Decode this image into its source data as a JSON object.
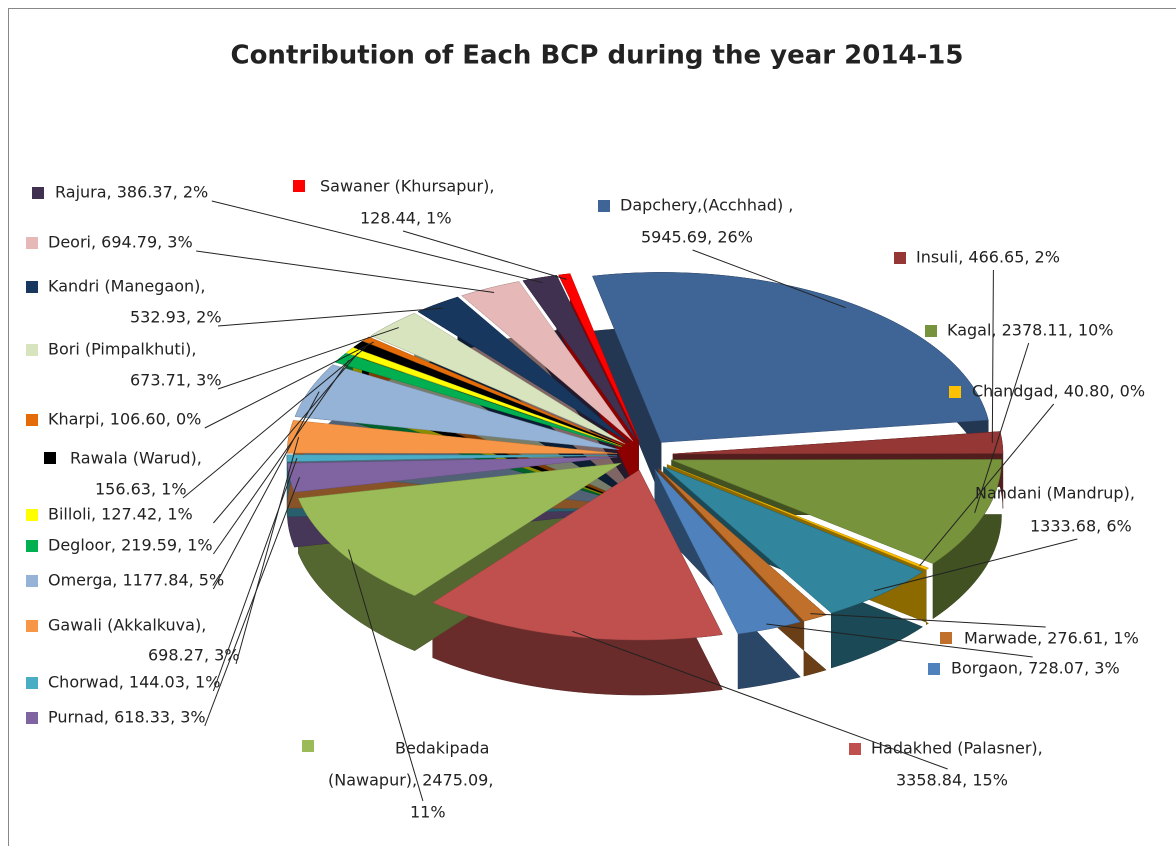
{
  "chart_data": {
    "type": "pie3d",
    "title": "Contribution of Each BCP during the year 2014-15",
    "values": [
      5945.69,
      466.65,
      2378.11,
      40.8,
      1333.68,
      276.61,
      728.07,
      3358.84,
      2475.09,
      618.33,
      144.03,
      698.27,
      1177.84,
      219.59,
      127.42,
      156.63,
      106.6,
      673.71,
      532.93,
      694.79,
      386.37,
      128.44
    ],
    "value_labels": [
      [
        "Dapchery,(Acchhad) ,",
        "5945.69, 26%"
      ],
      [
        "Insuli, 466.65, 2%"
      ],
      [
        "Kagal, 2378.11, 10%"
      ],
      [
        "Chandgad, 40.80, 0%"
      ],
      [
        "Nandani (Mandrup),",
        "1333.68, 6%"
      ],
      [
        "Marwade, 276.61, 1%"
      ],
      [
        "Borgaon, 728.07, 3%"
      ],
      [
        "Hadakhed (Palasner),",
        "3358.84, 15%"
      ],
      [
        "Bedakipada",
        "(Nawapur), 2475.09,",
        "11%"
      ],
      [
        "Purnad, 618.33, 3%"
      ],
      [
        "Chorwad, 144.03, 1%"
      ],
      [
        "Gawali (Akkalkuva),",
        "698.27, 3%"
      ],
      [
        "Omerga, 1177.84, 5%"
      ],
      [
        "Degloor, 219.59, 1%"
      ],
      [
        "Billoli, 127.42, 1%"
      ],
      [
        "Rawala (Warud),",
        "156.63, 1%"
      ],
      [
        "Kharpi, 106.60, 0%"
      ],
      [
        "Bori (Pimpalkhuti),",
        "673.71, 3%"
      ],
      [
        "Kandri (Manegaon),",
        "532.93, 2%"
      ],
      [
        "Deori, 694.79, 3%"
      ],
      [
        "Rajura, 386.37, 2%"
      ],
      [
        "Sawaner (Khursapur),",
        "128.44, 1%"
      ]
    ],
    "colors": [
      "#3f6496",
      "#953735",
      "#77933c",
      "#ffc000",
      "#31859c",
      "#c0702a",
      "#4f81bd",
      "#c0504d",
      "#9bbb59",
      "#8064a2",
      "#4bacc6",
      "#f79646",
      "#95b3d7",
      "#00b050",
      "#ffff00",
      "#000000",
      "#e36c09",
      "#d7e4bd",
      "#17375e",
      "#e6b9b8",
      "#403151",
      "#ff0000"
    ]
  }
}
